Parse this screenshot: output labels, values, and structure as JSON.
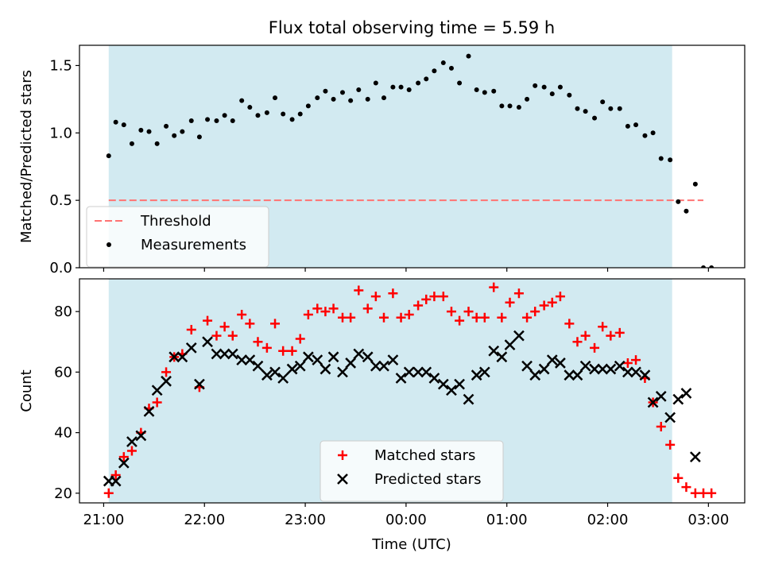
{
  "chart_data": [
    {
      "type": "scatter",
      "title": "Flux total observing time = 5.59 h",
      "xlabel": "",
      "ylabel": "Matched/Predicted stars",
      "x_unit": "hours since 21:00 UTC",
      "xlim": [
        -0.24,
        6.36
      ],
      "ylim": [
        0.0,
        1.65
      ],
      "yticks": [
        0.0,
        0.5,
        1.0,
        1.5
      ],
      "ytick_labels": [
        "0.0",
        "0.5",
        "1.0",
        "1.5"
      ],
      "shaded_span": [
        0.05,
        5.64
      ],
      "shade_color": "#add8e6",
      "legend_position": "lower-left",
      "threshold": {
        "name": "Threshold",
        "value": 0.5,
        "x": [
          0.05,
          5.95
        ],
        "color": "#ff7373",
        "style": "dashed"
      },
      "series": [
        {
          "name": "Measurements",
          "color": "#000000",
          "marker": "dot",
          "x": [
            0.05,
            0.12,
            0.2,
            0.28,
            0.37,
            0.45,
            0.53,
            0.62,
            0.7,
            0.78,
            0.87,
            0.95,
            1.03,
            1.12,
            1.2,
            1.28,
            1.37,
            1.45,
            1.53,
            1.62,
            1.7,
            1.78,
            1.87,
            1.95,
            2.03,
            2.12,
            2.2,
            2.28,
            2.37,
            2.45,
            2.53,
            2.62,
            2.7,
            2.78,
            2.87,
            2.95,
            3.03,
            3.12,
            3.2,
            3.28,
            3.37,
            3.45,
            3.53,
            3.62,
            3.7,
            3.78,
            3.87,
            3.95,
            4.03,
            4.12,
            4.2,
            4.28,
            4.37,
            4.45,
            4.53,
            4.62,
            4.7,
            4.78,
            4.87,
            4.95,
            5.03,
            5.12,
            5.2,
            5.28,
            5.37,
            5.45,
            5.53,
            5.62,
            5.7,
            5.78,
            5.87,
            5.95,
            6.03
          ],
          "y": [
            0.83,
            1.08,
            1.06,
            0.92,
            1.02,
            1.01,
            0.92,
            1.05,
            0.98,
            1.01,
            1.09,
            0.97,
            1.1,
            1.09,
            1.13,
            1.09,
            1.24,
            1.19,
            1.13,
            1.15,
            1.26,
            1.14,
            1.1,
            1.14,
            1.2,
            1.26,
            1.31,
            1.25,
            1.3,
            1.24,
            1.32,
            1.25,
            1.37,
            1.26,
            1.34,
            1.34,
            1.32,
            1.37,
            1.4,
            1.46,
            1.52,
            1.48,
            1.37,
            1.57,
            1.32,
            1.3,
            1.31,
            1.2,
            1.2,
            1.19,
            1.25,
            1.35,
            1.34,
            1.29,
            1.34,
            1.28,
            1.18,
            1.16,
            1.11,
            1.23,
            1.18,
            1.18,
            1.05,
            1.06,
            0.98,
            1.0,
            0.81,
            0.8,
            0.49,
            0.42,
            0.62,
            0.0,
            0.0
          ]
        }
      ]
    },
    {
      "type": "scatter",
      "title": "",
      "xlabel": "Time (UTC)",
      "ylabel": "Count",
      "x_unit": "hours since 21:00 UTC",
      "xlim": [
        -0.24,
        6.36
      ],
      "ylim": [
        16.8,
        90.8
      ],
      "yticks": [
        20,
        40,
        60,
        80
      ],
      "ytick_labels": [
        "20",
        "40",
        "60",
        "80"
      ],
      "xticks": [
        0,
        1,
        2,
        3,
        4,
        5,
        6
      ],
      "xtick_labels": [
        "21:00",
        "22:00",
        "23:00",
        "00:00",
        "01:00",
        "02:00",
        "03:00"
      ],
      "shaded_span": [
        0.05,
        5.64
      ],
      "shade_color": "#add8e6",
      "legend_position": "lower-center",
      "series": [
        {
          "name": "Matched stars",
          "color": "#ff0000",
          "marker": "plus",
          "x": [
            0.05,
            0.12,
            0.2,
            0.28,
            0.37,
            0.45,
            0.53,
            0.62,
            0.7,
            0.78,
            0.87,
            0.95,
            1.03,
            1.12,
            1.2,
            1.28,
            1.37,
            1.45,
            1.53,
            1.62,
            1.7,
            1.78,
            1.87,
            1.95,
            2.03,
            2.12,
            2.2,
            2.28,
            2.37,
            2.45,
            2.53,
            2.62,
            2.7,
            2.78,
            2.87,
            2.95,
            3.03,
            3.12,
            3.2,
            3.28,
            3.37,
            3.45,
            3.53,
            3.62,
            3.7,
            3.78,
            3.87,
            3.95,
            4.03,
            4.12,
            4.2,
            4.28,
            4.37,
            4.45,
            4.53,
            4.62,
            4.7,
            4.78,
            4.87,
            4.95,
            5.03,
            5.12,
            5.2,
            5.28,
            5.37,
            5.45,
            5.53,
            5.62,
            5.7,
            5.78,
            5.87,
            5.95,
            6.03
          ],
          "y": [
            20,
            26,
            32,
            34,
            40,
            48,
            50,
            60,
            65,
            66,
            74,
            55,
            77,
            72,
            75,
            72,
            79,
            76,
            70,
            68,
            76,
            67,
            67,
            71,
            79,
            81,
            80,
            81,
            78,
            78,
            87,
            81,
            85,
            78,
            86,
            78,
            79,
            82,
            84,
            85,
            85,
            80,
            77,
            80,
            78,
            78,
            88,
            78,
            83,
            86,
            78,
            80,
            82,
            83,
            85,
            76,
            70,
            72,
            68,
            75,
            72,
            73,
            63,
            64,
            58,
            50,
            42,
            36,
            25,
            22,
            20,
            20,
            20
          ]
        },
        {
          "name": "Predicted stars",
          "color": "#000000",
          "marker": "x",
          "x": [
            0.05,
            0.12,
            0.2,
            0.28,
            0.37,
            0.45,
            0.53,
            0.62,
            0.7,
            0.78,
            0.87,
            0.95,
            1.03,
            1.12,
            1.2,
            1.28,
            1.37,
            1.45,
            1.53,
            1.62,
            1.7,
            1.78,
            1.87,
            1.95,
            2.03,
            2.12,
            2.2,
            2.28,
            2.37,
            2.45,
            2.53,
            2.62,
            2.7,
            2.78,
            2.87,
            2.95,
            3.03,
            3.12,
            3.2,
            3.28,
            3.37,
            3.45,
            3.53,
            3.62,
            3.7,
            3.78,
            3.87,
            3.95,
            4.03,
            4.12,
            4.2,
            4.28,
            4.37,
            4.45,
            4.53,
            4.62,
            4.7,
            4.78,
            4.87,
            4.95,
            5.03,
            5.12,
            5.2,
            5.28,
            5.37,
            5.45,
            5.53,
            5.62,
            5.7,
            5.78,
            5.87
          ],
          "y": [
            24,
            24,
            30,
            37,
            39,
            47,
            54,
            57,
            65,
            65,
            68,
            56,
            70,
            66,
            66,
            66,
            64,
            64,
            62,
            59,
            60,
            58,
            61,
            62,
            65,
            64,
            61,
            65,
            60,
            63,
            66,
            65,
            62,
            62,
            64,
            58,
            60,
            60,
            60,
            58,
            56,
            54,
            56,
            51,
            59,
            60,
            67,
            65,
            69,
            72,
            62,
            59,
            61,
            64,
            63,
            59,
            59,
            62,
            61,
            61,
            61,
            62,
            60,
            60,
            59,
            50,
            52,
            45,
            51,
            53,
            32
          ]
        }
      ]
    }
  ]
}
